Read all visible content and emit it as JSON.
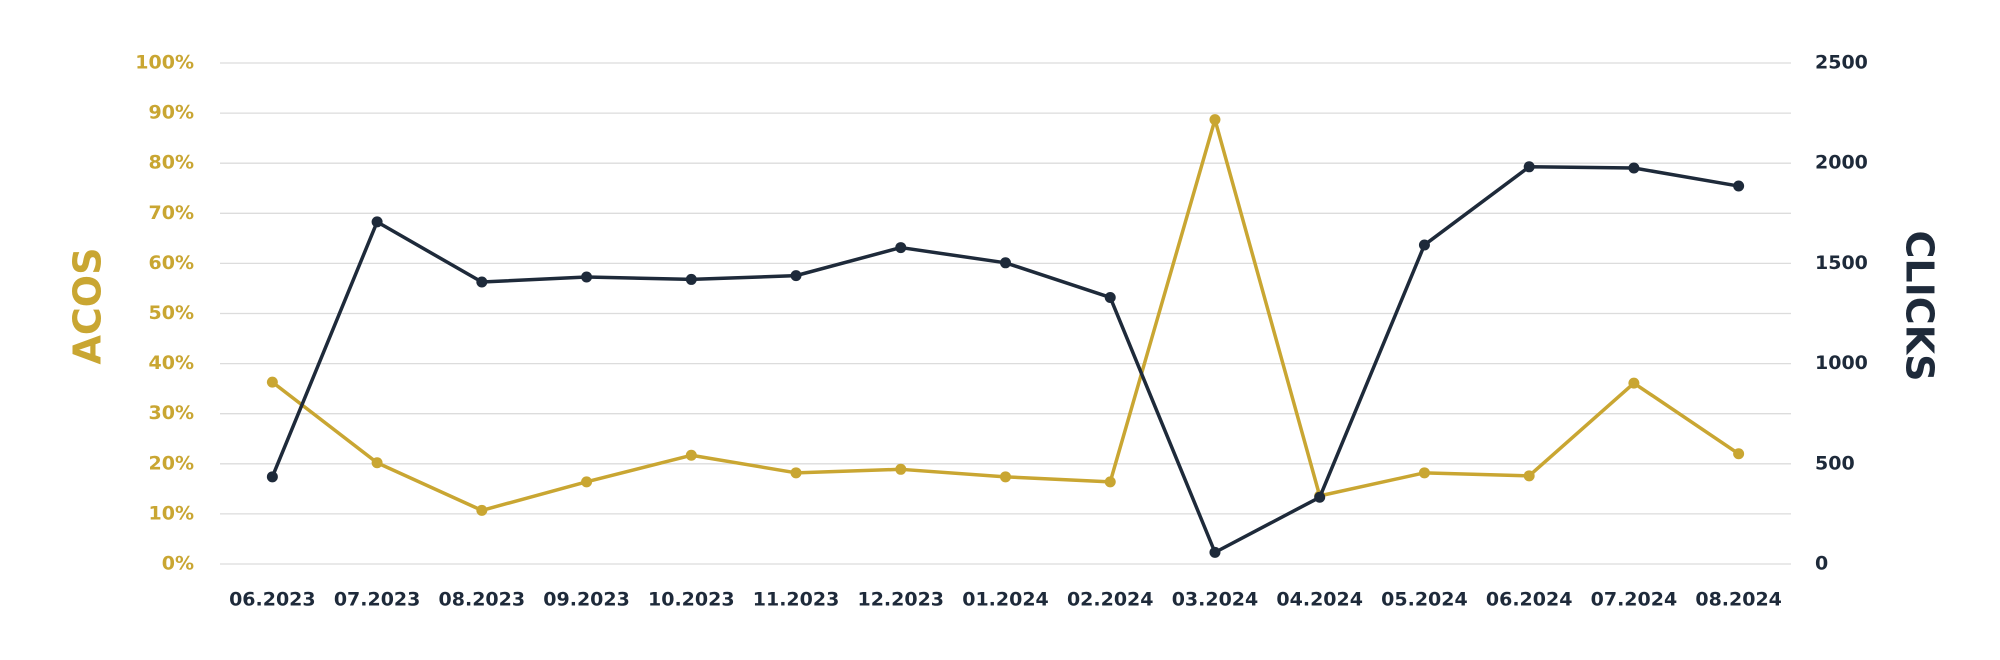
{
  "chart_data": {
    "type": "line",
    "categories": [
      "06.2023",
      "07.2023",
      "08.2023",
      "09.2023",
      "10.2023",
      "11.2023",
      "12.2023",
      "01.2024",
      "02.2024",
      "03.2024",
      "04.2024",
      "05.2024",
      "06.2024",
      "07.2024",
      "08.2024"
    ],
    "y_label": "ACOS",
    "y2_label": "CLICKS",
    "ylim": [
      0,
      100
    ],
    "yticks": [
      {
        "value": 0,
        "label": "0%"
      },
      {
        "value": 10,
        "label": "10%"
      },
      {
        "value": 20,
        "label": "20%"
      },
      {
        "value": 30,
        "label": "30%"
      },
      {
        "value": 40,
        "label": "40%"
      },
      {
        "value": 50,
        "label": "50%"
      },
      {
        "value": 60,
        "label": "60%"
      },
      {
        "value": 70,
        "label": "70%"
      },
      {
        "value": 80,
        "label": "80%"
      },
      {
        "value": 90,
        "label": "90%"
      },
      {
        "value": 100,
        "label": "100%"
      }
    ],
    "y2lim": [
      0,
      2500
    ],
    "y2ticks": [
      0,
      500,
      1000,
      1500,
      2000,
      2500
    ],
    "grid": true,
    "series": [
      {
        "color": "#c9a632",
        "axis": "y",
        "values": [
          36.3,
          20.2,
          10.7,
          16.4,
          21.7,
          18.2,
          18.9,
          17.4,
          16.4,
          88.7,
          13.6,
          18.2,
          17.6,
          36.1,
          22.0
        ]
      },
      {
        "color": "#1e2a3a",
        "axis": "y2",
        "values": [
          435,
          1707,
          1407,
          1432,
          1420,
          1439,
          1579,
          1503,
          1330,
          58,
          333,
          1592,
          1982,
          1976,
          1886
        ]
      }
    ]
  }
}
